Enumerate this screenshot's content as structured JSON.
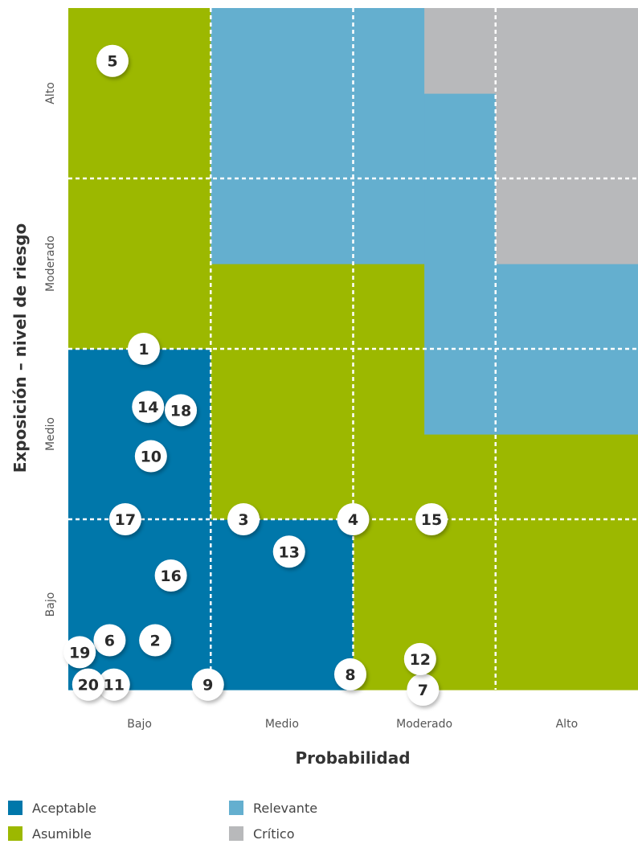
{
  "chart_data": {
    "type": "heatmap",
    "xlabel": "Probabilidad",
    "ylabel": "Exposición – nivel de riesgo",
    "x_categories": [
      "Bajo",
      "Medio",
      "Moderado",
      "Alto"
    ],
    "y_categories": [
      "Bajo",
      "Medio",
      "Moderado",
      "Alto"
    ],
    "x_range": [
      0,
      4
    ],
    "y_range": [
      0,
      4
    ],
    "grid": "dashed",
    "legend_placement": "bottom-left",
    "categories": [
      {
        "key": "aceptable",
        "label": "Aceptable",
        "color": "#0077aa"
      },
      {
        "key": "asumible",
        "label": "Asumible",
        "color": "#9cb800"
      },
      {
        "key": "relevante",
        "label": "Relevante",
        "color": "#64afcf"
      },
      {
        "key": "critico",
        "label": "Crítico",
        "color": "#b8b9bb"
      }
    ],
    "zones": [
      {
        "category": "aceptable",
        "x": [
          0,
          1
        ],
        "y": [
          0,
          2
        ]
      },
      {
        "category": "aceptable",
        "x": [
          1,
          2
        ],
        "y": [
          0,
          1
        ]
      },
      {
        "category": "asumible",
        "x": [
          0,
          1
        ],
        "y": [
          2,
          4
        ]
      },
      {
        "category": "asumible",
        "x": [
          1,
          3
        ],
        "y": [
          1,
          2
        ]
      },
      {
        "category": "asumible",
        "x": [
          1,
          2.5
        ],
        "y": [
          2,
          2.5
        ]
      },
      {
        "category": "asumible",
        "x": [
          2,
          4
        ],
        "y": [
          0,
          1
        ]
      },
      {
        "category": "asumible",
        "x": [
          2.5,
          4
        ],
        "y": [
          1,
          1.5
        ]
      },
      {
        "category": "relevante",
        "x": [
          1,
          2.5
        ],
        "y": [
          2.5,
          4
        ]
      },
      {
        "category": "relevante",
        "x": [
          2.5,
          3
        ],
        "y": [
          2.5,
          3.5
        ]
      },
      {
        "category": "relevante",
        "x": [
          2.5,
          3
        ],
        "y": [
          1.5,
          2.5
        ]
      },
      {
        "category": "relevante",
        "x": [
          3,
          4
        ],
        "y": [
          1.5,
          2.5
        ]
      },
      {
        "category": "critico",
        "x": [
          2.5,
          3
        ],
        "y": [
          3.5,
          4
        ]
      },
      {
        "category": "critico",
        "x": [
          3,
          4
        ],
        "y": [
          2.5,
          4
        ]
      }
    ],
    "risks": [
      {
        "id": "1",
        "x": 0.53,
        "y": 2.0
      },
      {
        "id": "2",
        "x": 0.61,
        "y": 0.29
      },
      {
        "id": "3",
        "x": 1.23,
        "y": 1.0
      },
      {
        "id": "4",
        "x": 2.0,
        "y": 1.0
      },
      {
        "id": "5",
        "x": 0.31,
        "y": 3.69
      },
      {
        "id": "6",
        "x": 0.29,
        "y": 0.29
      },
      {
        "id": "7",
        "x": 2.49,
        "y": 0.0
      },
      {
        "id": "8",
        "x": 1.98,
        "y": 0.09
      },
      {
        "id": "9",
        "x": 0.98,
        "y": 0.03
      },
      {
        "id": "10",
        "x": 0.58,
        "y": 1.37
      },
      {
        "id": "11",
        "x": 0.32,
        "y": 0.03
      },
      {
        "id": "12",
        "x": 2.47,
        "y": 0.18
      },
      {
        "id": "13",
        "x": 1.55,
        "y": 0.81
      },
      {
        "id": "14",
        "x": 0.56,
        "y": 1.66
      },
      {
        "id": "15",
        "x": 2.55,
        "y": 1.0
      },
      {
        "id": "16",
        "x": 0.72,
        "y": 0.67
      },
      {
        "id": "17",
        "x": 0.4,
        "y": 1.0
      },
      {
        "id": "18",
        "x": 0.79,
        "y": 1.64
      },
      {
        "id": "19",
        "x": 0.08,
        "y": 0.22
      },
      {
        "id": "20",
        "x": 0.14,
        "y": 0.03
      }
    ]
  }
}
